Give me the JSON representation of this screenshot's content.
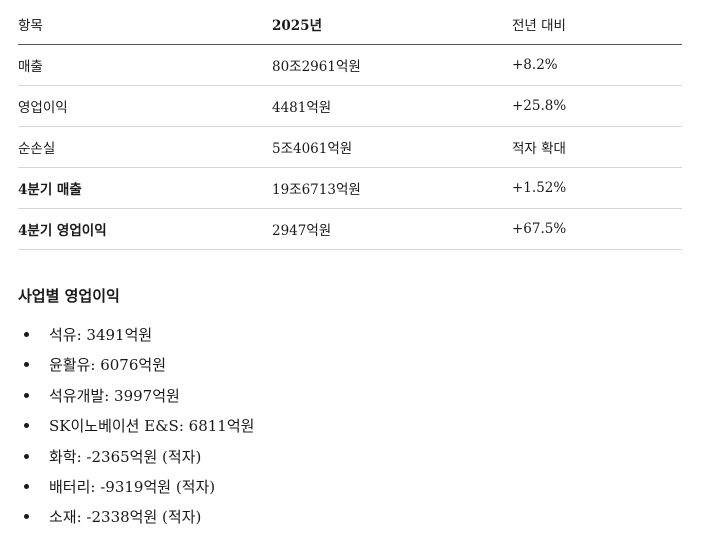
{
  "table": {
    "headers": [
      "항목",
      "2025년",
      "전년 대비"
    ],
    "rows": [
      {
        "item": "매출",
        "value": "80조2961억원",
        "change": "+8.2%"
      },
      {
        "item": "영업이익",
        "value": "4481억원",
        "change": "+25.8%"
      },
      {
        "item": "순손실",
        "value": "5조4061억원",
        "change": "적자 확대"
      },
      {
        "item": "4분기 매출",
        "value": "19조6713억원",
        "change": "+1.52%"
      },
      {
        "item": "4분기 영업이익",
        "value": "2947억원",
        "change": "+67.5%"
      }
    ]
  },
  "segments": {
    "title": "사업별 영업이익",
    "items": [
      "석유: 3491억원",
      "윤활유: 6076억원",
      "석유개발: 3997억원",
      "SK이노베이션 E&S: 6811억원",
      "화학: -2365억원 (적자)",
      "배터리: -9319억원 (적자)",
      "소재: -2338억원 (적자)"
    ]
  }
}
